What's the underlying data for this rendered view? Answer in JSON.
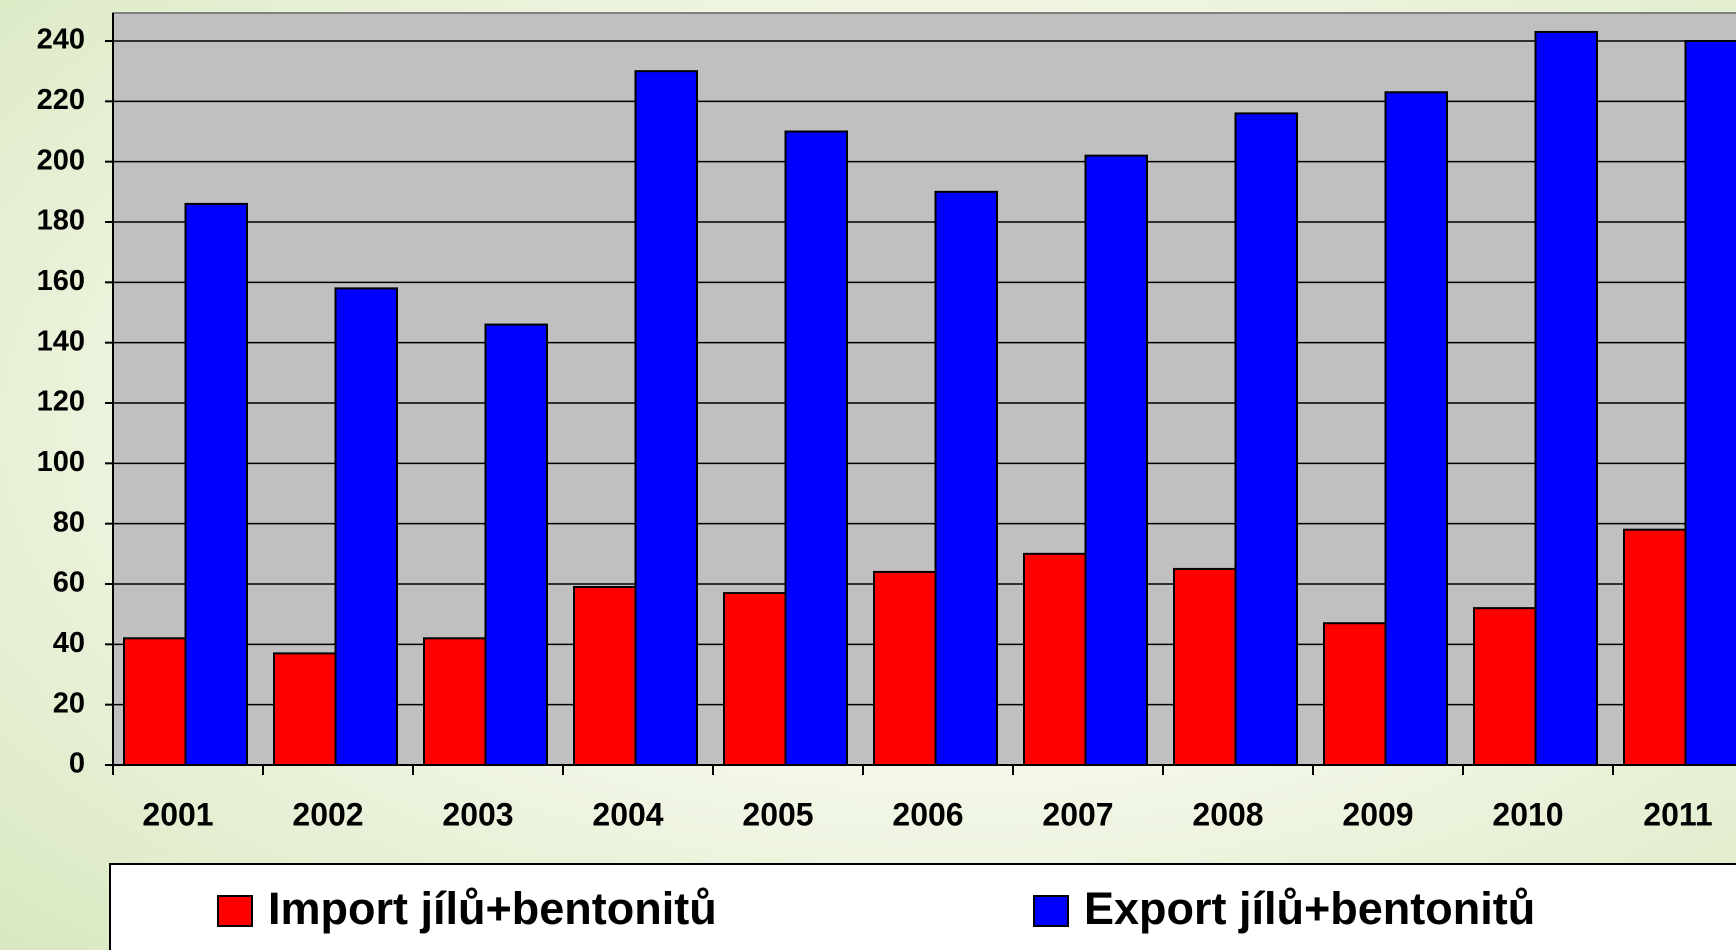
{
  "chart_data": {
    "type": "bar",
    "categories": [
      "2001",
      "2002",
      "2003",
      "2004",
      "2005",
      "2006",
      "2007",
      "2008",
      "2009",
      "2010",
      "2011"
    ],
    "series": [
      {
        "name": "Import jílů+bentonitů",
        "color": "#ff0000",
        "values": [
          42,
          37,
          42,
          59,
          57,
          64,
          70,
          65,
          47,
          52,
          78
        ]
      },
      {
        "name": "Export jílů+bentonitů",
        "color": "#0000ff",
        "values": [
          186,
          158,
          146,
          230,
          210,
          190,
          202,
          216,
          223,
          243,
          240
        ]
      }
    ],
    "ylim": [
      0,
      240
    ],
    "yticks": [
      0,
      20,
      40,
      60,
      80,
      100,
      120,
      140,
      160,
      180,
      200,
      220,
      240
    ],
    "grid": true,
    "legend": "bottom"
  }
}
